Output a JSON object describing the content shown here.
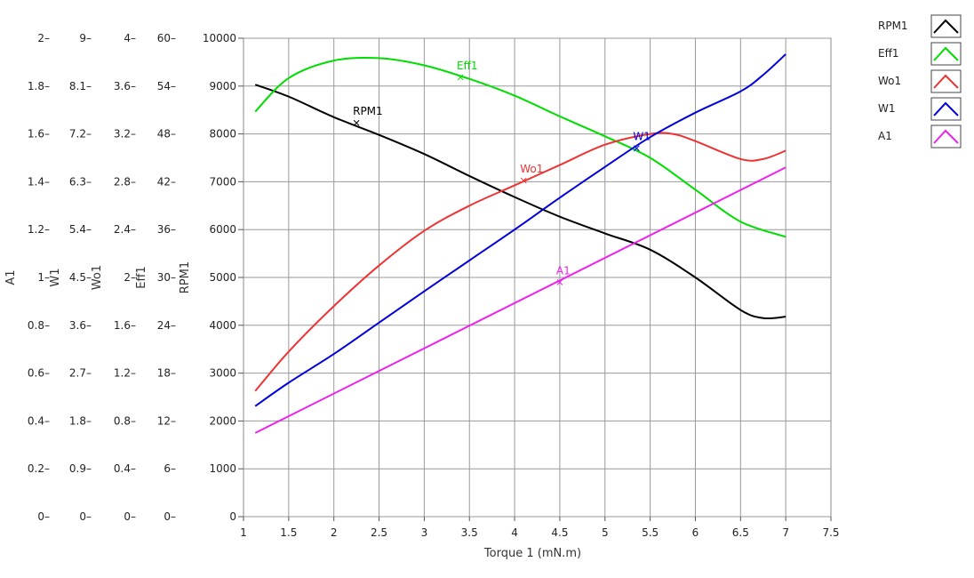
{
  "chart_data": {
    "type": "line",
    "xlabel": "Torque 1 (mN.m)",
    "xlim": [
      1,
      7.5
    ],
    "x_ticks": [
      "1",
      "1.5",
      "2",
      "2.5",
      "3",
      "3.5",
      "4",
      "4.5",
      "5",
      "5.5",
      "6",
      "6.5",
      "7",
      "7.5"
    ],
    "grid": true,
    "legend_position": "top-right",
    "y_axes": [
      {
        "label": "A1",
        "min": 0,
        "max": 2,
        "ticks": [
          "0",
          "0.2",
          "0.4",
          "0.6",
          "0.8",
          "1",
          "1.2",
          "1.4",
          "1.6",
          "1.8",
          "2"
        ]
      },
      {
        "label": "W1",
        "min": 0,
        "max": 9,
        "ticks": [
          "0",
          "0.9",
          "1.8",
          "2.7",
          "3.6",
          "4.5",
          "5.4",
          "6.3",
          "7.2",
          "8.1",
          "9"
        ]
      },
      {
        "label": "Wo1",
        "min": 0,
        "max": 4,
        "ticks": [
          "0",
          "0.4",
          "0.8",
          "1.2",
          "1.6",
          "2",
          "2.4",
          "2.8",
          "3.2",
          "3.6",
          "4"
        ]
      },
      {
        "label": "Eff1",
        "min": 0,
        "max": 60,
        "ticks": [
          "0",
          "6",
          "12",
          "18",
          "24",
          "30",
          "36",
          "42",
          "48",
          "54",
          "60"
        ]
      },
      {
        "label": "RPM1",
        "min": 0,
        "max": 10000,
        "ticks": [
          "0",
          "1000",
          "2000",
          "3000",
          "4000",
          "5000",
          "6000",
          "7000",
          "8000",
          "9000",
          "10000"
        ]
      }
    ],
    "series": [
      {
        "name": "RPM1",
        "color": "#000000",
        "axis": "RPM1",
        "x": [
          1.13,
          1.5,
          2,
          2.5,
          3,
          3.5,
          4,
          4.5,
          5,
          5.5,
          6,
          6.5,
          6.75,
          7
        ],
        "y": [
          9030,
          8780,
          8350,
          7980,
          7580,
          7120,
          6680,
          6270,
          5920,
          5580,
          5000,
          4320,
          4150,
          4180
        ],
        "label_text": "RPM1",
        "label_at": [
          2.25,
          8230
        ]
      },
      {
        "name": "Eff1",
        "color": "#00dd00",
        "axis": "Eff1",
        "x": [
          1.13,
          1.5,
          2,
          2.5,
          3,
          3.5,
          4,
          4.5,
          5,
          5.5,
          6,
          6.5,
          7
        ],
        "y": [
          50.8,
          55,
          57.2,
          57.5,
          56.6,
          54.9,
          52.8,
          50.2,
          47.7,
          45,
          41,
          37,
          35.1
        ],
        "label_text": "Eff1",
        "label_at": [
          3.4,
          55.1
        ]
      },
      {
        "name": "Wo1",
        "color": "#ee3333",
        "axis": "Wo1",
        "x": [
          1.13,
          1.5,
          2,
          2.5,
          3,
          3.5,
          4,
          4.5,
          5,
          5.5,
          5.75,
          6,
          6.5,
          6.75,
          7
        ],
        "y": [
          1.05,
          1.38,
          1.76,
          2.1,
          2.39,
          2.6,
          2.77,
          2.94,
          3.11,
          3.2,
          3.2,
          3.14,
          2.99,
          2.99,
          3.06
        ],
        "label_text": "Wo1",
        "label_at": [
          4.1,
          2.81
        ]
      },
      {
        "name": "W1",
        "color": "#0000dd",
        "axis": "W1",
        "x": [
          1.13,
          1.5,
          2,
          2.5,
          3,
          3.5,
          4,
          4.5,
          5,
          5.5,
          6,
          6.5,
          6.75,
          7
        ],
        "y": [
          2.08,
          2.52,
          3.06,
          3.65,
          4.24,
          4.82,
          5.4,
          6.0,
          6.58,
          7.14,
          7.6,
          8.0,
          8.31,
          8.7
        ],
        "label_text": "W1",
        "label_at": [
          5.35,
          6.93
        ]
      },
      {
        "name": "A1",
        "color": "#ee22ee",
        "axis": "A1",
        "x": [
          1.13,
          7
        ],
        "y": [
          0.35,
          1.46
        ],
        "label_text": "A1",
        "label_at": [
          4.5,
          0.98
        ]
      }
    ]
  }
}
